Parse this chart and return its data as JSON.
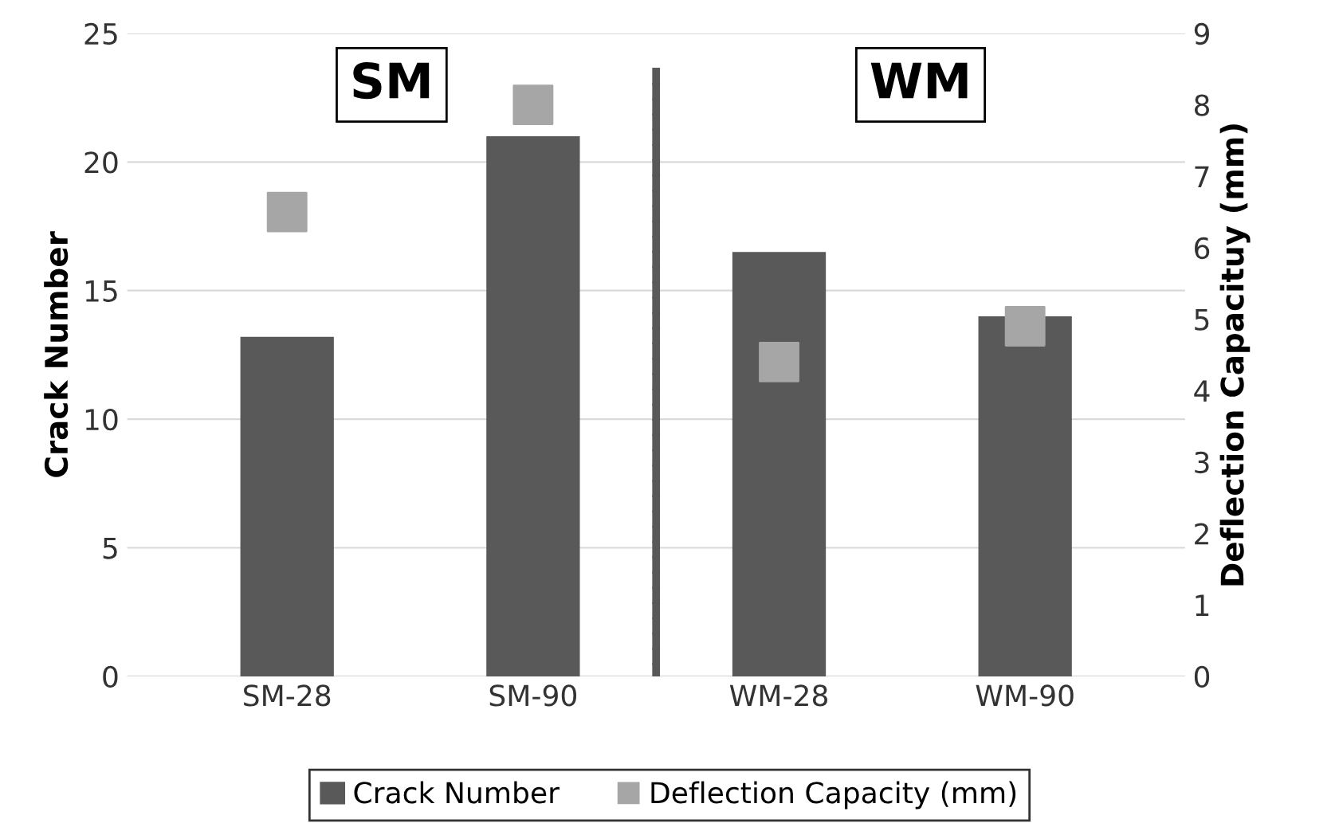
{
  "chart_data": {
    "type": "bar",
    "ylabel": "Crack Number",
    "y2label": "Deflection Capacituy (mm)",
    "categories": [
      "SM-28",
      "SM-90",
      "WM-28",
      "WM-90"
    ],
    "series": [
      {
        "name": "Crack Number",
        "color": "#595959",
        "values": [
          13.2,
          21.0,
          16.5,
          14.0
        ]
      },
      {
        "name": "Deflection Capacity (mm)",
        "type": "scatter",
        "axis": "y2",
        "marker": "square",
        "color": "#a6a6a6",
        "values": [
          6.5,
          8.0,
          4.4,
          4.9
        ]
      }
    ],
    "ylim": [
      0,
      25
    ],
    "yticks": [
      0,
      5,
      10,
      15,
      20,
      25
    ],
    "y2lim": [
      0,
      9
    ],
    "y2ticks": [
      0,
      1,
      2,
      3,
      4,
      5,
      6,
      7,
      8,
      9
    ],
    "annotations": [
      "SM",
      "WM"
    ],
    "grid": "y",
    "legend": "bottom"
  }
}
